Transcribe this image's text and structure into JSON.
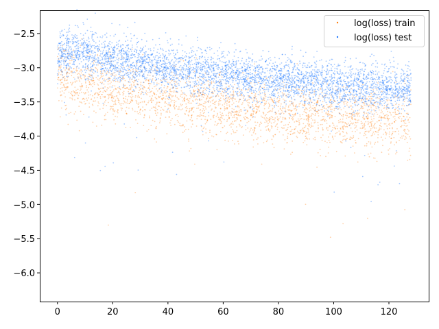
{
  "chart_data": {
    "type": "scatter",
    "title": "",
    "xlabel": "",
    "ylabel": "",
    "xlim": [
      -6.4,
      134.4
    ],
    "ylim": [
      -6.42,
      -2.16
    ],
    "xticks": [
      0,
      20,
      40,
      60,
      80,
      100,
      120
    ],
    "yticks": [
      -6.0,
      -5.5,
      -5.0,
      -4.5,
      -4.0,
      -3.5,
      -3.0,
      -2.5
    ],
    "xtick_labels": [
      "0",
      "20",
      "40",
      "60",
      "80",
      "100",
      "120"
    ],
    "ytick_labels": [
      "−6.0",
      "−5.5",
      "−5.0",
      "−4.5",
      "−4.0",
      "−3.5",
      "−3.0",
      "−2.5"
    ],
    "grid": false,
    "legend": {
      "position": "top-right",
      "entries": [
        "log(loss) train",
        "log(loss) test"
      ]
    },
    "series": [
      {
        "name": "log(loss) train",
        "color": "#ff7f0e",
        "x_range": [
          0,
          128
        ],
        "points": [
          [
            0,
            -3.05
          ],
          [
            1,
            -3.1
          ],
          [
            2,
            -3.12
          ],
          [
            3,
            -3.15
          ],
          [
            4,
            -3.18
          ],
          [
            5,
            -3.2
          ],
          [
            6,
            -3.2
          ],
          [
            8,
            -3.22
          ],
          [
            10,
            -3.25
          ],
          [
            12,
            -3.25
          ],
          [
            14,
            -3.28
          ],
          [
            16,
            -3.3
          ],
          [
            18,
            -3.3
          ],
          [
            20,
            -3.33
          ],
          [
            24,
            -3.35
          ],
          [
            28,
            -3.38
          ],
          [
            32,
            -3.4
          ],
          [
            36,
            -3.42
          ],
          [
            40,
            -3.45
          ],
          [
            44,
            -3.47
          ],
          [
            48,
            -3.5
          ],
          [
            52,
            -3.52
          ],
          [
            56,
            -3.55
          ],
          [
            60,
            -3.57
          ],
          [
            64,
            -3.58
          ],
          [
            68,
            -3.6
          ],
          [
            72,
            -3.62
          ],
          [
            76,
            -3.63
          ],
          [
            80,
            -3.65
          ],
          [
            84,
            -3.66
          ],
          [
            88,
            -3.68
          ],
          [
            92,
            -3.69
          ],
          [
            96,
            -3.7
          ],
          [
            100,
            -3.71
          ],
          [
            104,
            -3.72
          ],
          [
            108,
            -3.73
          ],
          [
            112,
            -3.74
          ],
          [
            116,
            -3.75
          ],
          [
            120,
            -3.75
          ],
          [
            124,
            -3.76
          ],
          [
            128,
            -3.77
          ]
        ]
      },
      {
        "name": "log(loss) test",
        "color": "#1f77ff",
        "x_range": [
          0,
          128
        ],
        "points": [
          [
            0,
            -2.95
          ],
          [
            1,
            -2.8
          ],
          [
            2,
            -2.78
          ],
          [
            3,
            -2.76
          ],
          [
            4,
            -2.75
          ],
          [
            5,
            -2.75
          ],
          [
            6,
            -2.76
          ],
          [
            8,
            -2.77
          ],
          [
            10,
            -2.78
          ],
          [
            12,
            -2.8
          ],
          [
            14,
            -2.82
          ],
          [
            16,
            -2.85
          ],
          [
            18,
            -2.87
          ],
          [
            20,
            -2.88
          ],
          [
            24,
            -2.9
          ],
          [
            28,
            -2.93
          ],
          [
            32,
            -2.95
          ],
          [
            36,
            -2.97
          ],
          [
            40,
            -3.0
          ],
          [
            44,
            -3.02
          ],
          [
            48,
            -3.04
          ],
          [
            52,
            -3.06
          ],
          [
            56,
            -3.08
          ],
          [
            60,
            -3.1
          ],
          [
            64,
            -3.12
          ],
          [
            68,
            -3.14
          ],
          [
            72,
            -3.15
          ],
          [
            76,
            -3.17
          ],
          [
            80,
            -3.18
          ],
          [
            84,
            -3.2
          ],
          [
            88,
            -3.21
          ],
          [
            92,
            -3.22
          ],
          [
            96,
            -3.24
          ],
          [
            100,
            -3.25
          ],
          [
            104,
            -3.26
          ],
          [
            108,
            -3.27
          ],
          [
            112,
            -3.28
          ],
          [
            116,
            -3.29
          ],
          [
            120,
            -3.3
          ],
          [
            124,
            -3.31
          ],
          [
            128,
            -3.31
          ]
        ]
      }
    ]
  }
}
